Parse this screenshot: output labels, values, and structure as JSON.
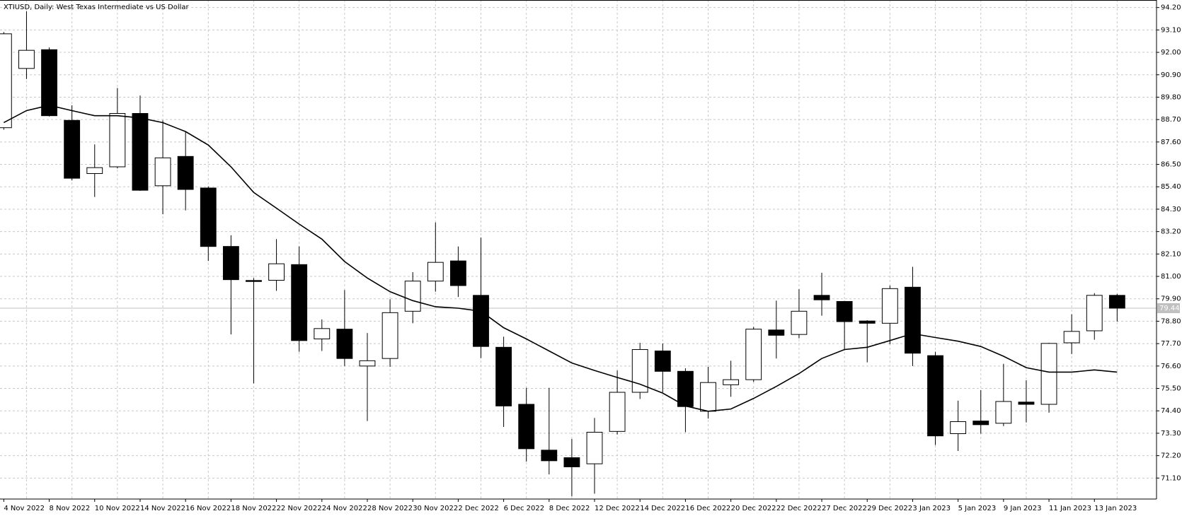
{
  "chart_data": {
    "type": "candlestick",
    "title": "XTIUSD, Daily:  West Texas Intermediate vs US Dollar",
    "categories": [
      "4 Nov 2022",
      null,
      "8 Nov 2022",
      null,
      "10 Nov 2022",
      null,
      "14 Nov 2022",
      null,
      "16 Nov 2022",
      null,
      "18 Nov 2022",
      null,
      "22 Nov 2022",
      null,
      "24 Nov 2022",
      null,
      "28 Nov 2022",
      null,
      "30 Nov 2022",
      null,
      "2 Dec 2022",
      null,
      "6 Dec 2022",
      null,
      "8 Dec 2022",
      null,
      "12 Dec 2022",
      null,
      "14 Dec 2022",
      null,
      "16 Dec 2022",
      null,
      "20 Dec 2022",
      null,
      "22 Dec 2022",
      null,
      "27 Dec 2022",
      null,
      "29 Dec 2022",
      null,
      "3 Jan 2023",
      null,
      "5 Jan 2023",
      null,
      "9 Jan 2023",
      null,
      "11 Jan 2023",
      null,
      "13 Jan 2023",
      null
    ],
    "open": [
      88.3,
      91.21,
      92.13,
      88.66,
      86.05,
      86.38,
      89.0,
      85.45,
      86.89,
      85.34,
      82.47,
      80.8,
      80.81,
      81.58,
      77.93,
      78.41,
      76.6,
      76.97,
      79.29,
      80.77,
      81.76,
      80.07,
      77.52,
      74.72,
      72.47,
      72.1,
      71.8,
      73.39,
      75.31,
      77.34,
      76.34,
      74.38,
      75.68,
      75.93,
      78.37,
      78.15,
      80.07,
      79.77,
      78.81,
      78.7,
      80.47,
      77.11,
      73.28,
      73.9,
      73.79,
      74.83,
      74.72,
      77.74,
      78.33,
      80.07
    ],
    "high": [
      93.0,
      94.02,
      92.24,
      89.4,
      87.48,
      90.25,
      89.88,
      88.66,
      88.11,
      85.42,
      83.02,
      80.92,
      82.83,
      82.47,
      78.89,
      80.33,
      78.22,
      79.88,
      81.21,
      83.65,
      82.47,
      82.91,
      78.04,
      75.53,
      75.53,
      73.02,
      74.05,
      76.38,
      77.74,
      77.71,
      76.49,
      76.56,
      76.86,
      78.52,
      79.81,
      80.37,
      81.18,
      79.8,
      78.85,
      80.55,
      81.47,
      77.3,
      74.9,
      75.42,
      76.71,
      75.9,
      77.74,
      79.14,
      80.18,
      80.14
    ],
    "low": [
      88.2,
      90.69,
      88.85,
      85.71,
      84.9,
      86.3,
      85.2,
      84.05,
      84.24,
      81.76,
      78.15,
      75.75,
      80.29,
      77.3,
      77.34,
      76.6,
      73.9,
      76.56,
      78.7,
      80.25,
      79.99,
      76.99,
      73.61,
      71.91,
      71.28,
      70.21,
      70.33,
      73.24,
      74.98,
      75.31,
      73.35,
      74.02,
      75.09,
      75.82,
      76.97,
      77.96,
      79.07,
      77.37,
      76.78,
      77.67,
      76.6,
      72.72,
      72.43,
      73.28,
      73.65,
      73.83,
      74.31,
      77.19,
      77.89,
      78.78
    ],
    "close": [
      92.91,
      92.1,
      88.89,
      85.82,
      86.34,
      89.0,
      85.23,
      86.82,
      85.27,
      82.47,
      80.84,
      80.75,
      81.62,
      77.85,
      78.44,
      76.97,
      76.86,
      79.22,
      80.77,
      81.69,
      80.55,
      77.56,
      74.64,
      72.54,
      71.95,
      71.65,
      73.35,
      75.31,
      77.41,
      76.34,
      74.61,
      75.79,
      75.93,
      78.41,
      78.11,
      79.29,
      79.85,
      78.78,
      78.7,
      80.4,
      77.23,
      73.17,
      73.87,
      73.72,
      74.86,
      74.72,
      77.71,
      78.3,
      80.07,
      79.44
    ],
    "moving_average": [
      88.55,
      89.14,
      89.4,
      89.14,
      88.89,
      88.89,
      88.78,
      88.55,
      88.11,
      87.45,
      86.38,
      85.12,
      84.35,
      83.57,
      82.83,
      81.73,
      80.92,
      80.25,
      79.81,
      79.51,
      79.44,
      79.29,
      78.48,
      77.93,
      77.34,
      76.75,
      76.38,
      76.04,
      75.71,
      75.27,
      74.64,
      74.38,
      74.49,
      75.01,
      75.6,
      76.23,
      76.97,
      77.41,
      77.52,
      77.85,
      78.19,
      78.0,
      77.82,
      77.56,
      77.08,
      76.52,
      76.3,
      76.3,
      76.41,
      76.3
    ],
    "up_color": "#ffffff",
    "down_color": "#000000",
    "line_color": "#000000",
    "last_price": 79.44,
    "ylim": [
      70.07,
      94.57
    ],
    "yticks": [
      {
        "value": 71.1,
        "label": "71.10"
      },
      {
        "value": 72.2,
        "label": "72.20"
      },
      {
        "value": 73.3,
        "label": "73.30"
      },
      {
        "value": 74.4,
        "label": "74.40"
      },
      {
        "value": 75.5,
        "label": "75.50"
      },
      {
        "value": 76.6,
        "label": "76.60"
      },
      {
        "value": 77.7,
        "label": "77.70"
      },
      {
        "value": 78.8,
        "label": "78.80"
      },
      {
        "value": 79.9,
        "label": "79.90"
      },
      {
        "value": 81.0,
        "label": "81.00"
      },
      {
        "value": 82.1,
        "label": "82.10"
      },
      {
        "value": 83.2,
        "label": "83.20"
      },
      {
        "value": 84.3,
        "label": "84.30"
      },
      {
        "value": 85.4,
        "label": "85.40"
      },
      {
        "value": 86.5,
        "label": "86.50"
      },
      {
        "value": 87.6,
        "label": "87.60"
      },
      {
        "value": 88.7,
        "label": "88.70"
      },
      {
        "value": 89.8,
        "label": "89.80"
      },
      {
        "value": 90.9,
        "label": "90.90"
      },
      {
        "value": 92.0,
        "label": "92.00"
      },
      {
        "value": 93.1,
        "label": "93.10"
      },
      {
        "value": 94.2,
        "label": "94.20"
      }
    ],
    "grid": true
  }
}
